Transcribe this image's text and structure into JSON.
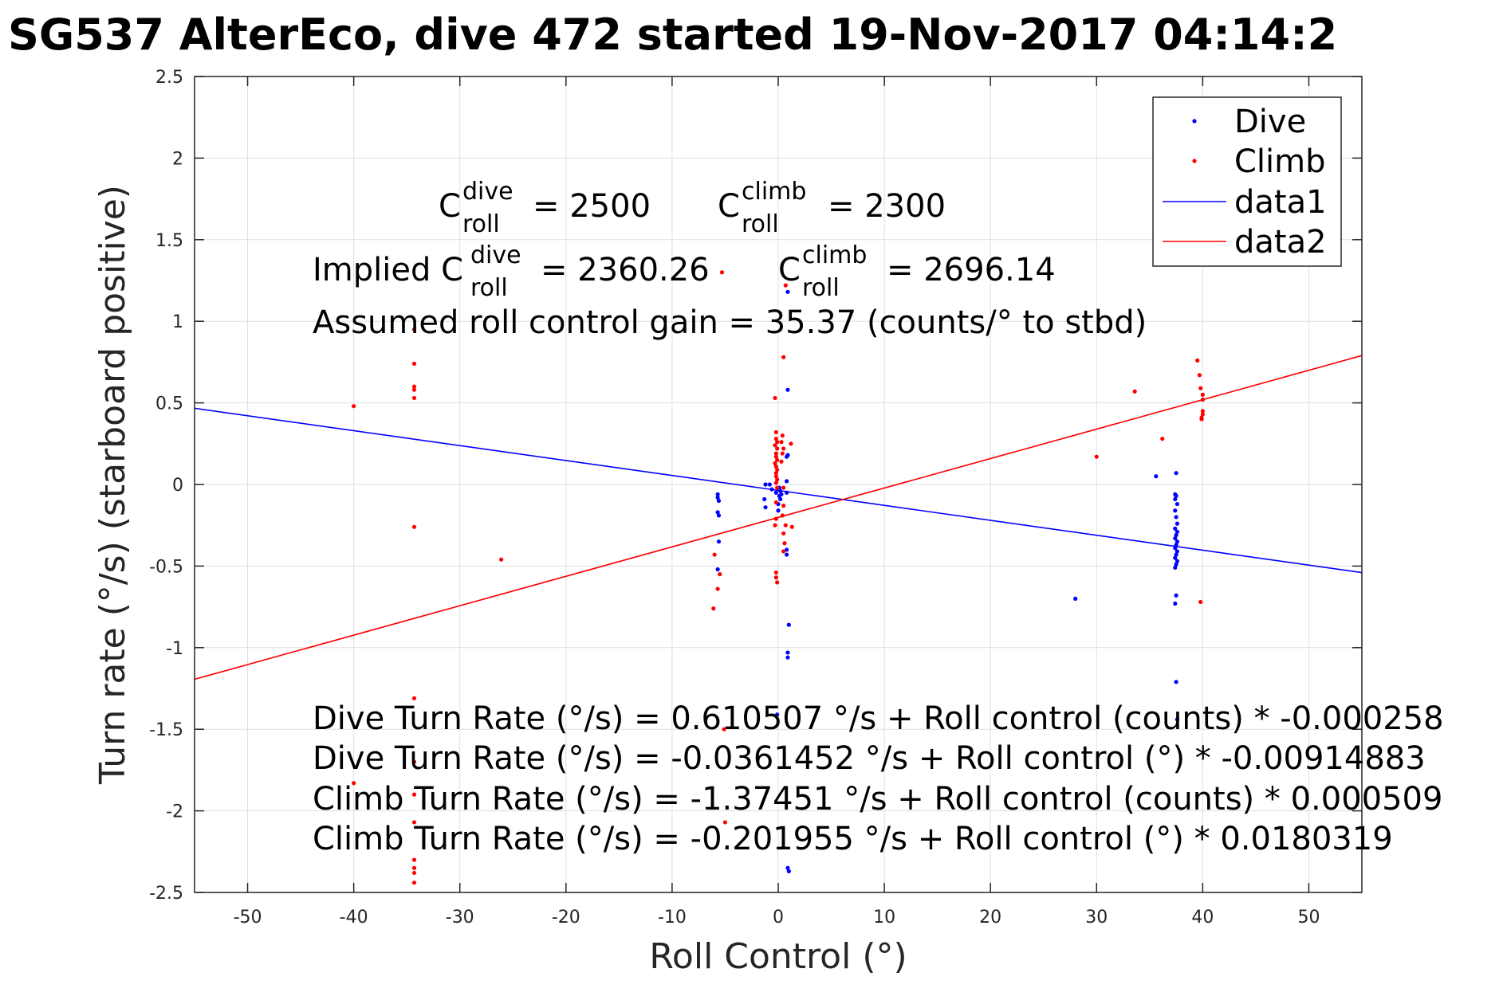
{
  "chart_data": {
    "type": "scatter",
    "title": "SG537 AlterEco, dive 472 started 19-Nov-2017 04:14:2",
    "xlabel": "Roll Control (°)",
    "ylabel": "Turn rate (°/s) (starboard positive)",
    "xlim": [
      -55,
      55
    ],
    "ylim": [
      -2.5,
      2.5
    ],
    "xticks": [
      -50,
      -40,
      -30,
      -20,
      -10,
      0,
      10,
      20,
      30,
      40,
      50
    ],
    "yticks": [
      -2.5,
      -2,
      -1.5,
      -1,
      -0.5,
      0,
      0.5,
      1,
      1.5,
      2,
      2.5
    ],
    "grid": true,
    "legend_position": "top-right",
    "series": [
      {
        "name": "Dive",
        "style": "point",
        "color": "#0000ff",
        "points": [
          [
            -5.7,
            -0.06
          ],
          [
            -5.7,
            -0.08
          ],
          [
            -5.6,
            -0.1
          ],
          [
            -5.7,
            -0.17
          ],
          [
            -5.6,
            -0.19
          ],
          [
            -5.6,
            -0.35
          ],
          [
            -5.7,
            -0.52
          ],
          [
            -1.2,
            0.0
          ],
          [
            -1.3,
            -0.09
          ],
          [
            -1.2,
            -0.14
          ],
          [
            -0.8,
            0.0
          ],
          [
            -0.6,
            -0.03
          ],
          [
            -0.2,
            -0.05
          ],
          [
            0.0,
            -0.12
          ],
          [
            0.0,
            -0.16
          ],
          [
            -0.1,
            -1.41
          ],
          [
            0.1,
            -0.02
          ],
          [
            0.2,
            -0.04
          ],
          [
            0.3,
            -0.06
          ],
          [
            0.1,
            -0.07
          ],
          [
            0.2,
            -0.09
          ],
          [
            0.9,
            1.18
          ],
          [
            0.9,
            0.58
          ],
          [
            0.9,
            0.18
          ],
          [
            0.8,
            0.17
          ],
          [
            0.8,
            0.02
          ],
          [
            0.8,
            -0.05
          ],
          [
            0.8,
            -0.4
          ],
          [
            0.8,
            -0.43
          ],
          [
            1.0,
            -0.86
          ],
          [
            0.9,
            -1.03
          ],
          [
            0.9,
            -1.06
          ],
          [
            0.9,
            -2.35
          ],
          [
            1.0,
            -2.37
          ],
          [
            28.0,
            -0.7
          ],
          [
            35.6,
            0.05
          ],
          [
            37.5,
            0.07
          ],
          [
            37.4,
            -0.06
          ],
          [
            37.5,
            -0.07
          ],
          [
            37.4,
            -0.09
          ],
          [
            37.6,
            -0.12
          ],
          [
            37.4,
            -0.16
          ],
          [
            37.5,
            -0.2
          ],
          [
            37.6,
            -0.24
          ],
          [
            37.4,
            -0.27
          ],
          [
            37.6,
            -0.29
          ],
          [
            37.5,
            -0.31
          ],
          [
            37.4,
            -0.33
          ],
          [
            37.6,
            -0.35
          ],
          [
            37.5,
            -0.37
          ],
          [
            37.4,
            -0.39
          ],
          [
            37.6,
            -0.41
          ],
          [
            37.5,
            -0.43
          ],
          [
            37.4,
            -0.45
          ],
          [
            37.6,
            -0.47
          ],
          [
            37.5,
            -0.49
          ],
          [
            37.4,
            -0.51
          ],
          [
            37.5,
            -0.68
          ],
          [
            37.4,
            -0.73
          ],
          [
            37.5,
            -1.21
          ],
          [
            37.6,
            -1.44
          ]
        ]
      },
      {
        "name": "Climb",
        "style": "point",
        "color": "#ff0000",
        "points": [
          [
            -40.0,
            0.48
          ],
          [
            -40.0,
            -1.83
          ],
          [
            -34.3,
            0.95
          ],
          [
            -34.3,
            0.74
          ],
          [
            -34.3,
            0.6
          ],
          [
            -34.3,
            0.58
          ],
          [
            -34.3,
            0.53
          ],
          [
            -34.3,
            -0.26
          ],
          [
            -34.3,
            -1.31
          ],
          [
            -34.3,
            -1.7
          ],
          [
            -34.3,
            -1.9
          ],
          [
            -34.3,
            -2.07
          ],
          [
            -34.3,
            -2.3
          ],
          [
            -34.3,
            -2.35
          ],
          [
            -34.3,
            -2.38
          ],
          [
            -34.3,
            -2.44
          ],
          [
            -26.1,
            -0.46
          ],
          [
            -6.0,
            -0.43
          ],
          [
            -6.1,
            -0.76
          ],
          [
            -5.7,
            -0.64
          ],
          [
            -5.5,
            -0.55
          ],
          [
            -5.3,
            1.3
          ],
          [
            -5.1,
            -1.5
          ],
          [
            -5.0,
            -2.07
          ],
          [
            -0.3,
            0.53
          ],
          [
            -0.2,
            0.32
          ],
          [
            -0.2,
            0.28
          ],
          [
            -0.1,
            0.26
          ],
          [
            -0.3,
            0.24
          ],
          [
            -0.1,
            0.22
          ],
          [
            -0.2,
            0.19
          ],
          [
            -0.2,
            0.17
          ],
          [
            -0.1,
            0.15
          ],
          [
            -0.3,
            0.13
          ],
          [
            -0.2,
            0.11
          ],
          [
            -0.1,
            0.09
          ],
          [
            -0.2,
            0.07
          ],
          [
            -0.2,
            0.05
          ],
          [
            -0.1,
            0.03
          ],
          [
            -0.2,
            0.01
          ],
          [
            -0.1,
            -0.02
          ],
          [
            -0.2,
            -0.11
          ],
          [
            -0.2,
            -0.21
          ],
          [
            -0.3,
            -0.25
          ],
          [
            -0.2,
            -0.54
          ],
          [
            -0.2,
            -0.57
          ],
          [
            -0.1,
            -0.6
          ],
          [
            0.5,
            0.78
          ],
          [
            0.4,
            0.3
          ],
          [
            0.3,
            0.26
          ],
          [
            0.5,
            0.22
          ],
          [
            0.4,
            0.19
          ],
          [
            0.3,
            0.14
          ],
          [
            0.5,
            -0.02
          ],
          [
            0.5,
            -0.13
          ],
          [
            0.4,
            -0.19
          ],
          [
            0.5,
            -0.3
          ],
          [
            0.6,
            -0.36
          ],
          [
            0.5,
            -0.41
          ],
          [
            0.7,
            -0.25
          ],
          [
            0.7,
            1.22
          ],
          [
            1.2,
            0.25
          ],
          [
            1.3,
            -0.26
          ],
          [
            30.0,
            0.17
          ],
          [
            33.6,
            0.57
          ],
          [
            36.2,
            0.28
          ],
          [
            39.5,
            0.76
          ],
          [
            39.7,
            0.67
          ],
          [
            39.8,
            0.59
          ],
          [
            40.0,
            0.55
          ],
          [
            40.0,
            0.52
          ],
          [
            40.0,
            0.45
          ],
          [
            40.0,
            0.43
          ],
          [
            39.9,
            0.41
          ],
          [
            39.9,
            0.4
          ],
          [
            39.8,
            -0.72
          ]
        ]
      },
      {
        "name": "data1",
        "style": "line",
        "color": "#0000ff",
        "x": [
          -55,
          55
        ],
        "y": [
          0.467,
          -0.54
        ]
      },
      {
        "name": "data2",
        "style": "line",
        "color": "#ff0000",
        "x": [
          -55,
          55
        ],
        "y": [
          -1.194,
          0.79
        ]
      }
    ],
    "annotations": {
      "c_dive": {
        "base": "C",
        "sup": "dive",
        "sub": "roll",
        "value": "= 2500"
      },
      "c_climb": {
        "base": "C",
        "sup": "climb",
        "sub": "roll",
        "value": "= 2300"
      },
      "implied_prefix": "Implied C",
      "implied_dive": {
        "sup": "dive",
        "sub": "roll",
        "value": "= 2360.26"
      },
      "implied_climb": {
        "base": "C",
        "sup": "climb",
        "sub": "roll",
        "value": "= 2696.14"
      },
      "gain": "Assumed roll control gain = 35.37 (counts/° to stbd)",
      "fit_lines": [
        "Dive Turn Rate (°/s) = 0.610507 °/s + Roll control (counts) * -0.000258",
        "Dive Turn Rate (°/s) = -0.0361452 °/s + Roll control (°) * -0.00914883",
        "Climb Turn Rate (°/s) = -1.37451 °/s + Roll control (counts) * 0.000509",
        "Climb Turn Rate (°/s) = -0.201955 °/s + Roll control (°) * 0.0180319"
      ]
    }
  }
}
